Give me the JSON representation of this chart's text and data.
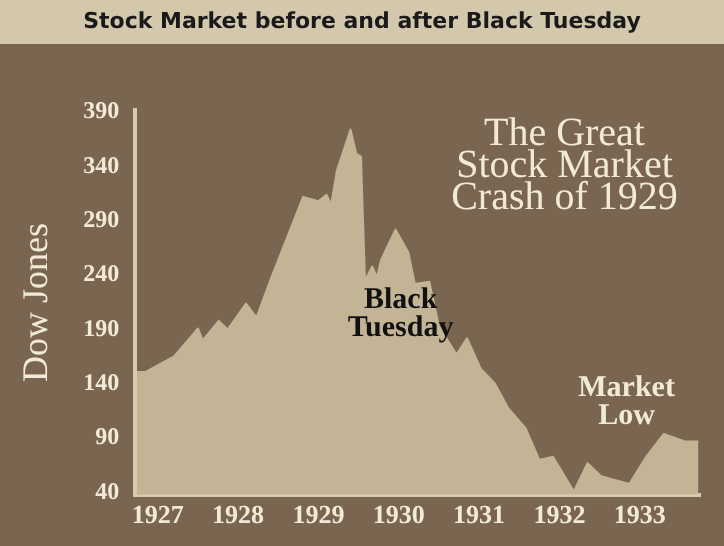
{
  "chart_data": {
    "type": "area",
    "title": "Stock Market before and after Black Tuesday",
    "subtitle": "The Great Stock Market Crash of 1929",
    "ylabel": "Dow Jones",
    "annotations": [
      "Black Tuesday",
      "Market Low"
    ],
    "x": [
      1926.74,
      1926.85,
      1927.2,
      1927.41,
      1927.5,
      1927.56,
      1927.76,
      1927.87,
      1928.1,
      1928.23,
      1928.4,
      1928.66,
      1928.81,
      1929.0,
      1929.1,
      1929.16,
      1929.23,
      1929.4,
      1929.47,
      1929.53,
      1929.58,
      1929.67,
      1929.73,
      1929.78,
      1929.96,
      1930.12,
      1930.2,
      1930.38,
      1930.5,
      1930.72,
      1930.85,
      1931.02,
      1931.19,
      1931.36,
      1931.58,
      1931.75,
      1931.92,
      1932.18,
      1932.35,
      1932.52,
      1932.87,
      1933.08,
      1933.3,
      1933.56,
      1933.73
    ],
    "values": [
      151,
      151,
      165,
      183,
      191,
      180,
      198,
      190,
      214,
      201,
      235,
      284,
      312,
      308,
      314,
      305,
      336,
      374,
      352,
      349,
      235,
      248,
      238,
      254,
      282,
      261,
      232,
      234,
      193,
      167,
      182,
      154,
      141,
      118,
      99,
      70,
      73,
      41,
      67,
      55,
      48,
      73,
      94,
      87,
      87
    ],
    "color": "#c4b496",
    "xlim": [
      1926.72,
      1933.75
    ],
    "xticks": [
      1927,
      1928,
      1929,
      1930,
      1931,
      1932,
      1933
    ],
    "ylim": [
      38,
      392
    ],
    "yticks": [
      40,
      90,
      140,
      190,
      240,
      290,
      340,
      390
    ],
    "grid": false,
    "legend": false
  }
}
